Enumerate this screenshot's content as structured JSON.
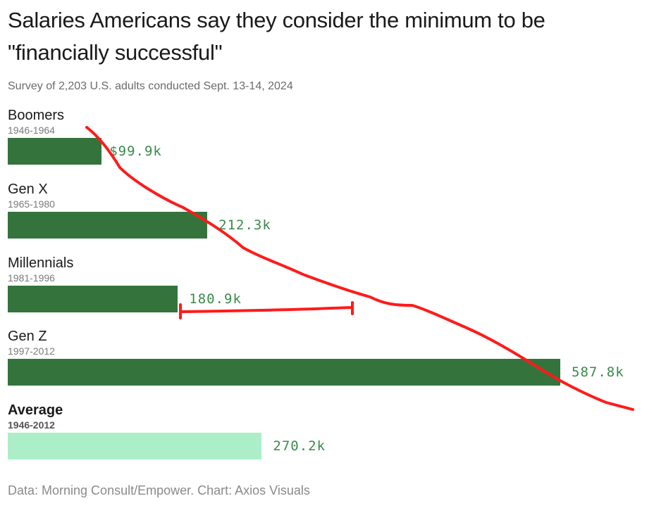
{
  "title": "Salaries Americans say they consider the minimum to be \"financially successful\"",
  "subtitle": "Survey of 2,203 U.S. adults conducted Sept. 13-14, 2024",
  "footer": "Data: Morning Consult/Empower. Chart: Axios Visuals",
  "colors": {
    "bar": "#34743c",
    "average_bar": "#abeec8",
    "value_text": "#3a8a4a",
    "annotation": "#ff1a1a"
  },
  "chart_data": {
    "type": "bar",
    "orientation": "horizontal",
    "units": "USD thousands",
    "xlim": [
      0,
      600
    ],
    "categories": [
      "Boomers",
      "Gen X",
      "Millennials",
      "Gen Z",
      "Average"
    ],
    "ranges": [
      "1946-1964",
      "1965-1980",
      "1981-1996",
      "1997-2012",
      "1946-2012"
    ],
    "values": [
      99.9,
      212.3,
      180.9,
      587.8,
      270.2
    ],
    "value_labels": [
      "$99.9k",
      "212.3k",
      "180.9k",
      "587.8k",
      "270.2k"
    ],
    "highlight": "Average"
  }
}
